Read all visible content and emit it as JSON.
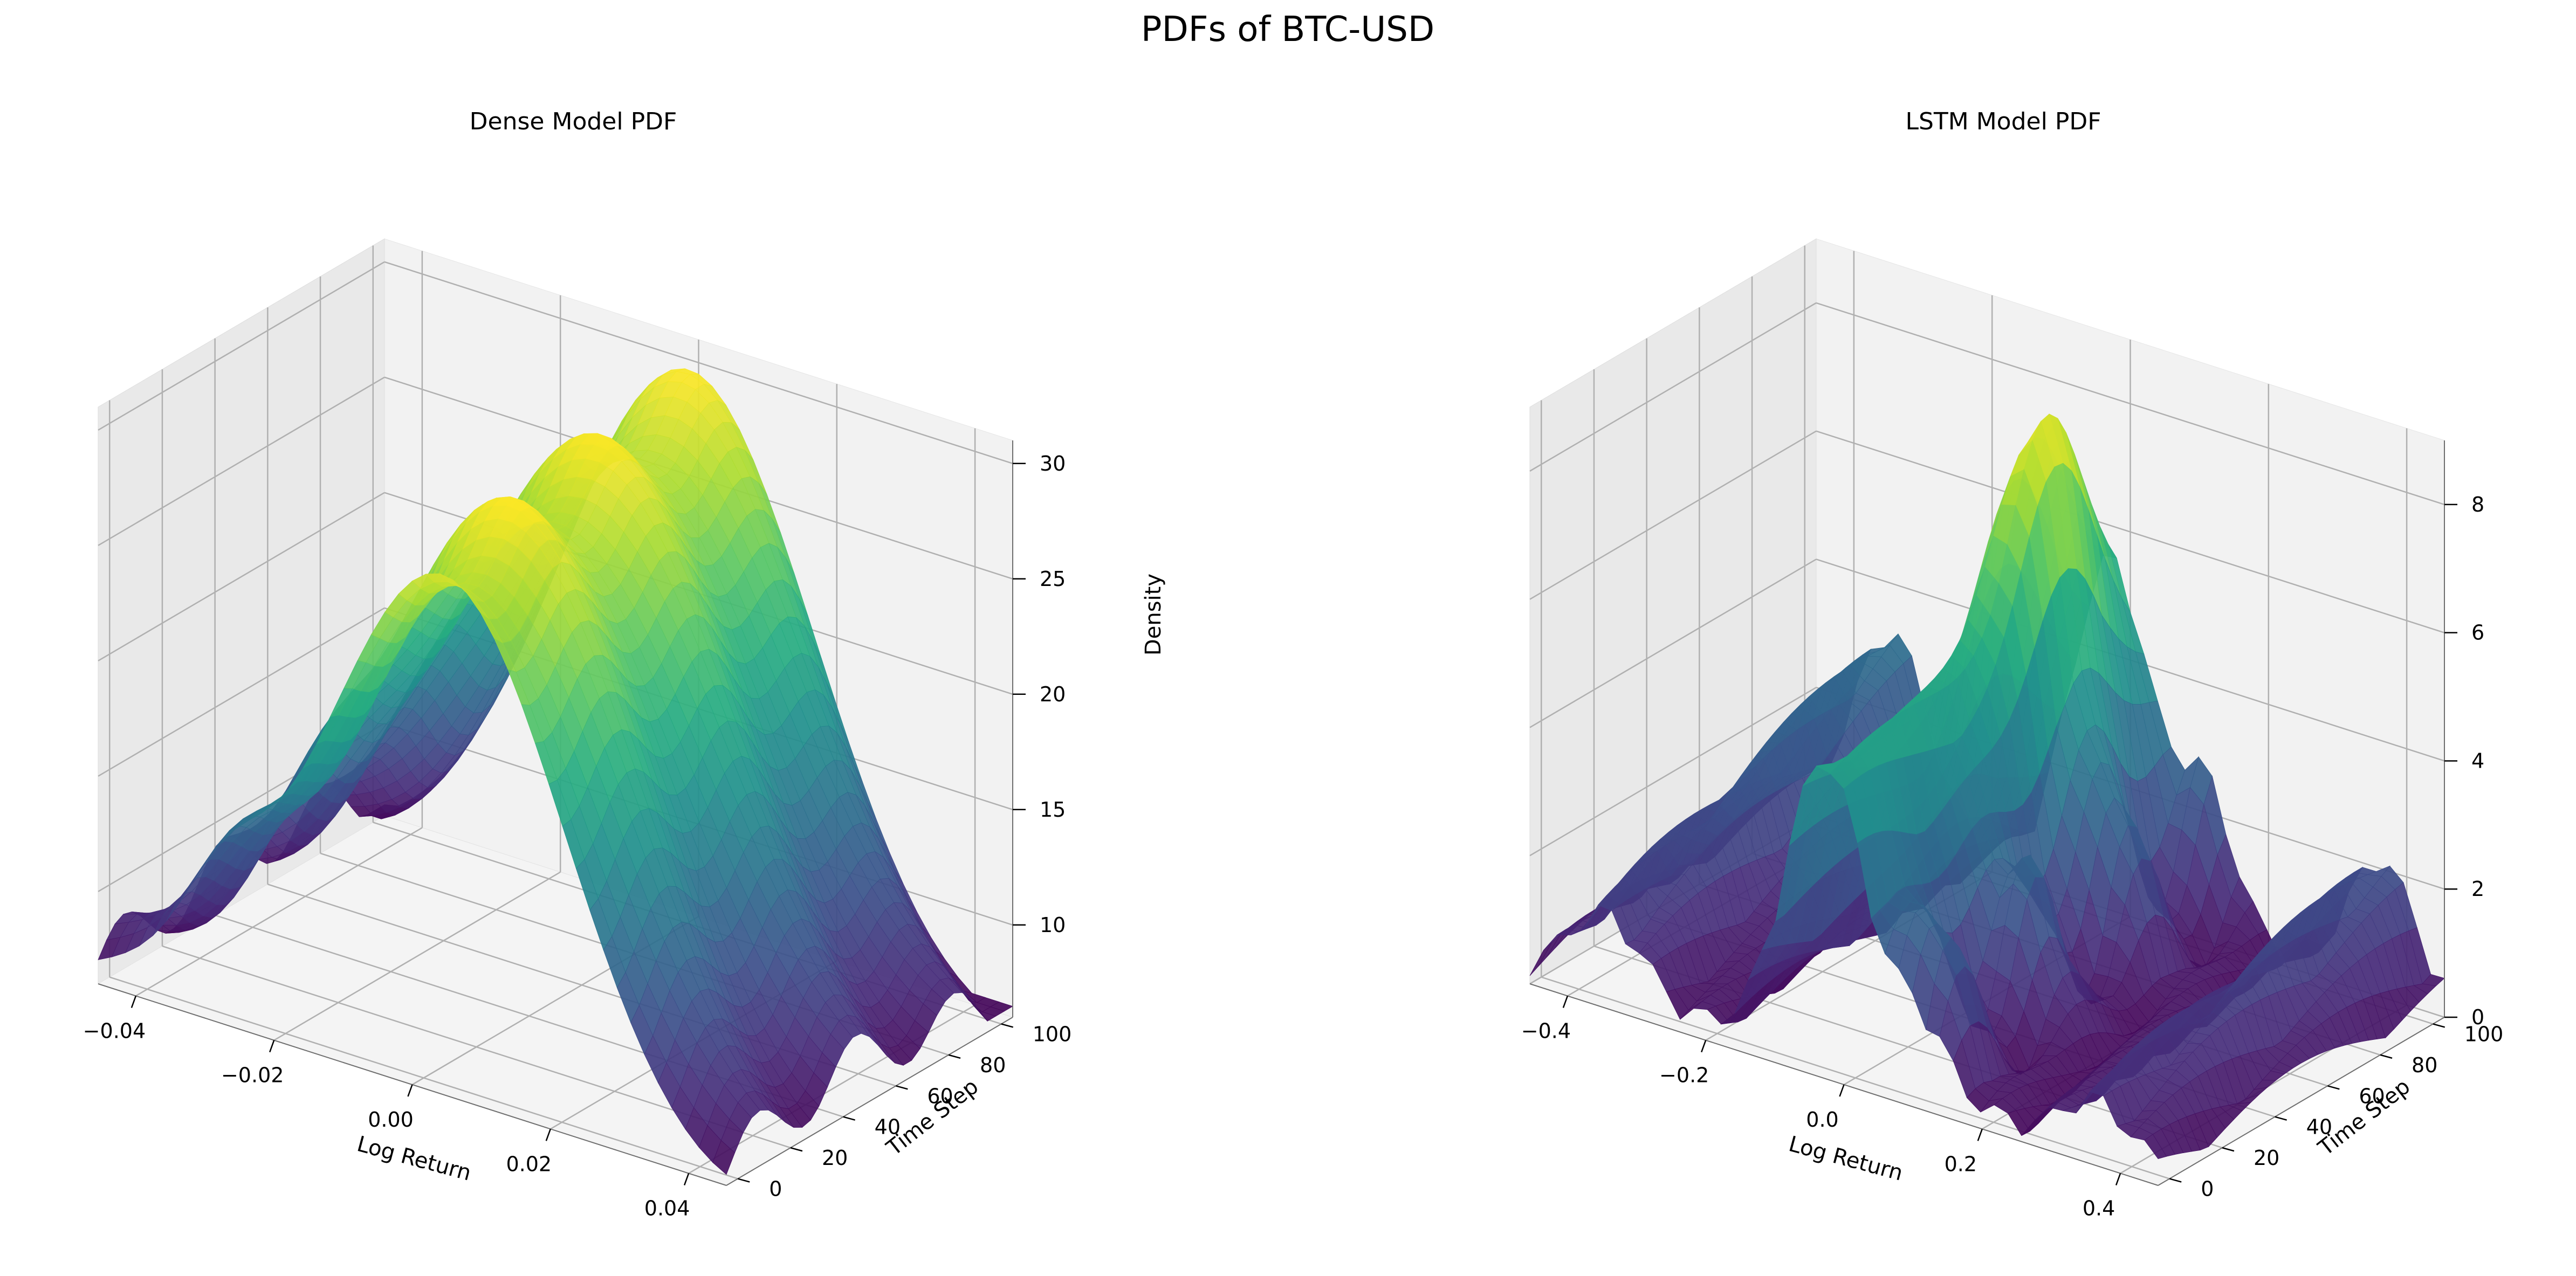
{
  "figure": {
    "title": "PDFs of BTC-USD"
  },
  "chart_data": [
    {
      "type": "surface3d",
      "title": "Dense Model PDF",
      "xlabel": "Log Return",
      "ylabel": "Time Step",
      "zlabel": "Density",
      "x_ticks": [
        "−0.04",
        "−0.02",
        "0.00",
        "0.02",
        "0.04"
      ],
      "y_ticks": [
        "0",
        "20",
        "40",
        "60",
        "80",
        "100"
      ],
      "z_ticks": [
        "10",
        "15",
        "20",
        "25",
        "30"
      ],
      "xlim": [
        -0.045,
        0.045
      ],
      "ylim": [
        0,
        100
      ],
      "zlim": [
        6,
        31
      ],
      "colormap": "viridis",
      "grid": true,
      "approx_peak_density": 30
    },
    {
      "type": "surface3d",
      "title": "LSTM Model PDF",
      "xlabel": "Log Return",
      "ylabel": "Time Step",
      "zlabel": "",
      "x_ticks": [
        "−0.4",
        "−0.2",
        "0.0",
        "0.2",
        "0.4"
      ],
      "y_ticks": [
        "0",
        "20",
        "40",
        "60",
        "80",
        "100"
      ],
      "z_ticks": [
        "0",
        "2",
        "4",
        "6",
        "8"
      ],
      "xlim": [
        -0.45,
        0.45
      ],
      "ylim": [
        0,
        100
      ],
      "zlim": [
        0,
        9
      ],
      "colormap": "viridis",
      "grid": true,
      "approx_peak_density": 9
    }
  ]
}
